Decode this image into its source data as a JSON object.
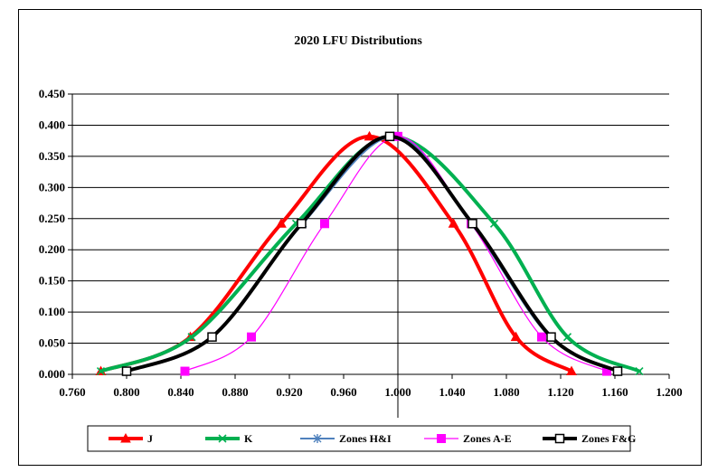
{
  "chart_data": {
    "type": "line",
    "title": "2020 LFU Distributions",
    "xlabel": "",
    "ylabel": "",
    "xlim": [
      0.76,
      1.2
    ],
    "ylim": [
      0,
      0.45
    ],
    "x_ticks": [
      "0.760",
      "0.800",
      "0.840",
      "0.880",
      "0.920",
      "0.960",
      "1.000",
      "1.040",
      "1.080",
      "1.120",
      "1.160",
      "1.200"
    ],
    "y_ticks": [
      "0.000",
      "0.050",
      "0.100",
      "0.150",
      "0.200",
      "0.250",
      "0.300",
      "0.350",
      "0.400",
      "0.450"
    ],
    "grid": "horizontal",
    "legend_position": "bottom",
    "series": [
      {
        "name": "J",
        "color": "#ff0000",
        "marker": "triangle",
        "points": [
          [
            0.781,
            0.005
          ],
          [
            0.847,
            0.06
          ],
          [
            0.914,
            0.242
          ],
          [
            0.979,
            0.382
          ],
          [
            1.041,
            0.242
          ],
          [
            1.087,
            0.06
          ],
          [
            1.128,
            0.005
          ]
        ]
      },
      {
        "name": "K",
        "color": "#00b050",
        "marker": "x",
        "points": [
          [
            0.781,
            0.005
          ],
          [
            0.848,
            0.06
          ],
          [
            0.925,
            0.242
          ],
          [
            0.996,
            0.382
          ],
          [
            1.071,
            0.242
          ],
          [
            1.125,
            0.06
          ],
          [
            1.178,
            0.005
          ]
        ]
      },
      {
        "name": "Zones H&I",
        "color": "#4f81bd",
        "marker": "asterisk",
        "points": [
          [
            0.8,
            0.005
          ],
          [
            0.863,
            0.06
          ],
          [
            0.93,
            0.242
          ],
          [
            0.997,
            0.382
          ],
          [
            1.054,
            0.242
          ],
          [
            1.112,
            0.06
          ],
          [
            1.162,
            0.005
          ]
        ]
      },
      {
        "name": "Zones A-E",
        "color": "#ff00ff",
        "marker": "square-filled",
        "points": [
          [
            0.843,
            0.005
          ],
          [
            0.892,
            0.06
          ],
          [
            0.946,
            0.242
          ],
          [
            1.0,
            0.382
          ],
          [
            1.054,
            0.242
          ],
          [
            1.106,
            0.06
          ],
          [
            1.154,
            0.005
          ]
        ]
      },
      {
        "name": "Zones F&G",
        "color": "#000000",
        "marker": "square-open",
        "points": [
          [
            0.8,
            0.005
          ],
          [
            0.863,
            0.06
          ],
          [
            0.929,
            0.242
          ],
          [
            0.994,
            0.382
          ],
          [
            1.055,
            0.242
          ],
          [
            1.113,
            0.06
          ],
          [
            1.162,
            0.005
          ]
        ]
      }
    ]
  }
}
